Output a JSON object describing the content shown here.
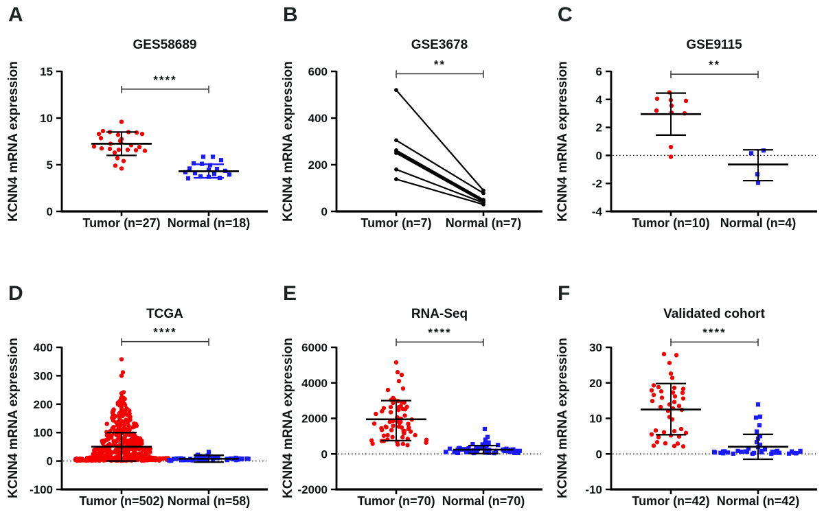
{
  "background": "#ffffff",
  "palette": {
    "tumor_red": "#f40000",
    "normal_blue": "#1b1aff",
    "axis_black": "#000000",
    "bracket_gray": "#3f3f3f"
  },
  "chart_data": [
    {
      "panel": "A",
      "type": "scatter",
      "title": "GES58689",
      "ylabel": "KCNN4 mRNA expression",
      "ylim": [
        0,
        15
      ],
      "yticks": [
        0,
        5,
        10,
        15
      ],
      "zero_line": false,
      "significance": "****",
      "bracket_y": 13.1,
      "legend": "none",
      "grid": "off",
      "groups": [
        {
          "name": "Tumor (n=27)",
          "marker": "circle",
          "color": "#f40000",
          "mean": 7.25,
          "upper": 8.5,
          "lower": 6.0,
          "points": [
            [
              0,
              9.6
            ],
            [
              -27,
              8.6
            ],
            [
              -17,
              8.5
            ],
            [
              10,
              8.5
            ],
            [
              22,
              8.45
            ],
            [
              -33,
              8.3
            ],
            [
              30,
              8.3
            ],
            [
              -5,
              8.2
            ],
            [
              -30,
              7.85
            ],
            [
              0,
              7.75
            ],
            [
              -2,
              7.55
            ],
            [
              -1,
              7.35
            ],
            [
              -16,
              7.25
            ],
            [
              14,
              7.1
            ],
            [
              -40,
              6.95
            ],
            [
              26,
              6.9
            ],
            [
              -29,
              6.75
            ],
            [
              -17,
              6.7
            ],
            [
              -4,
              6.6
            ],
            [
              9,
              6.6
            ],
            [
              21,
              6.55
            ],
            [
              34,
              6.5
            ],
            [
              -10,
              6.3
            ],
            [
              -6,
              5.7
            ],
            [
              3,
              5.4
            ],
            [
              -9,
              4.9
            ],
            [
              0,
              4.6
            ]
          ]
        },
        {
          "name": "Normal (n=18)",
          "marker": "square",
          "color": "#1b1aff",
          "error_color": "#1b1aff",
          "mean": 4.3,
          "upper": 5.05,
          "lower": 3.6,
          "points": [
            [
              -8,
              5.85
            ],
            [
              6,
              5.85
            ],
            [
              18,
              5.5
            ],
            [
              -22,
              5.15
            ],
            [
              -10,
              5.1
            ],
            [
              2,
              4.95
            ],
            [
              -28,
              4.6
            ],
            [
              12,
              4.55
            ],
            [
              0,
              4.45
            ],
            [
              24,
              4.35
            ],
            [
              -34,
              4.2
            ],
            [
              -20,
              4.1
            ],
            [
              8,
              4.0
            ],
            [
              30,
              3.95
            ],
            [
              -12,
              3.75
            ],
            [
              0,
              3.7
            ],
            [
              16,
              3.6
            ],
            [
              -30,
              3.55
            ]
          ]
        }
      ]
    },
    {
      "panel": "B",
      "type": "paired",
      "title": "GSE3678",
      "ylabel": "KCNN4 mRNA expression",
      "ylim": [
        0,
        600
      ],
      "yticks": [
        0,
        200,
        400,
        600
      ],
      "zero_line": false,
      "significance": "**",
      "bracket_y": 590,
      "legend": "none",
      "grid": "off",
      "line_color": "#000000",
      "groups": [
        {
          "name": "Tumor (n=7)",
          "marker": "circle",
          "color": "#000000"
        },
        {
          "name": "Normal (n=7)",
          "marker": "circle",
          "color": "#000000"
        }
      ],
      "pairs": [
        [
          520,
          90
        ],
        [
          305,
          78
        ],
        [
          262,
          50
        ],
        [
          256,
          45
        ],
        [
          250,
          41
        ],
        [
          180,
          37
        ],
        [
          138,
          30
        ]
      ]
    },
    {
      "panel": "C",
      "type": "scatter",
      "title": "GSE9115",
      "ylabel": "KCNN4 mRNA expression",
      "ylim": [
        -4,
        6
      ],
      "yticks": [
        -4,
        -2,
        0,
        2,
        4,
        6
      ],
      "zero_line": true,
      "significance": "**",
      "bracket_y": 5.8,
      "legend": "none",
      "grid": "off",
      "groups": [
        {
          "name": "Tumor (n=10)",
          "marker": "circle",
          "color": "#f40000",
          "mean": 2.95,
          "upper": 4.45,
          "lower": 1.45,
          "points": [
            [
              -2,
              4.5
            ],
            [
              -20,
              4.05
            ],
            [
              0,
              3.95
            ],
            [
              22,
              3.9
            ],
            [
              1,
              3.55
            ],
            [
              -21,
              3.2
            ],
            [
              1,
              3.05
            ],
            [
              20,
              3.0
            ],
            [
              0,
              0.6
            ],
            [
              0,
              -0.1
            ]
          ]
        },
        {
          "name": "Normal (n=4)",
          "marker": "square",
          "color": "#1b1aff",
          "mean": -0.65,
          "upper": 0.4,
          "lower": -1.8,
          "points": [
            [
              -10,
              0.15
            ],
            [
              8,
              0.35
            ],
            [
              -1,
              -1.35
            ],
            [
              0,
              -1.95
            ]
          ]
        }
      ]
    },
    {
      "panel": "D",
      "type": "scatter",
      "title": "TCGA",
      "ylabel": "KCNN4 mRNA expression",
      "ylim": [
        -100,
        400
      ],
      "yticks": [
        -100,
        0,
        100,
        200,
        300,
        400
      ],
      "zero_line": true,
      "significance": "****",
      "bracket_y": 420,
      "legend": "none",
      "grid": "off",
      "groups": [
        {
          "name": "Tumor (n=502)",
          "marker": "circle",
          "color": "#f40000",
          "mean": 50,
          "upper": 100,
          "lower": 0,
          "bands": [
            [
              150,
              1,
              12,
              68
            ],
            [
              120,
              12,
              45,
              42
            ],
            [
              90,
              45,
              85,
              30
            ],
            [
              60,
              85,
              135,
              22
            ],
            [
              40,
              135,
              185,
              14
            ],
            [
              20,
              185,
              232,
              8
            ]
          ],
          "outliers": [
            [
              0,
              238
            ],
            [
              3,
              242
            ],
            [
              0,
              300
            ],
            [
              2,
              312
            ],
            [
              0,
              358
            ]
          ]
        },
        {
          "name": "Normal (n=58)",
          "marker": "square",
          "color": "#1b1aff",
          "mean": 8,
          "upper": 20,
          "lower": -4,
          "bands": [
            [
              46,
              1,
              12,
              58
            ],
            [
              10,
              12,
              22,
              25
            ]
          ],
          "outliers": [
            [
              0,
              32
            ]
          ]
        }
      ]
    },
    {
      "panel": "E",
      "type": "scatter",
      "title": "RNA-Seq",
      "ylabel": "KCNN4 mRNA expression",
      "ylim": [
        -2000,
        6000
      ],
      "yticks": [
        -2000,
        0,
        2000,
        4000,
        6000
      ],
      "zero_line": true,
      "significance": "****",
      "bracket_y": 6300,
      "legend": "none",
      "grid": "off",
      "groups": [
        {
          "name": "Tumor (n=70)",
          "marker": "circle",
          "color": "#f40000",
          "mean": 1950,
          "upper": 3000,
          "lower": 750,
          "bands": [
            [
              10,
              480,
              800,
              52
            ],
            [
              16,
              800,
              1450,
              48
            ],
            [
              16,
              1450,
              2100,
              40
            ],
            [
              12,
              2100,
              2700,
              36
            ],
            [
              7,
              2700,
              3250,
              24
            ]
          ],
          "outliers": [
            [
              -12,
              3600
            ],
            [
              10,
              3680
            ],
            [
              4,
              4100
            ],
            [
              8,
              4450
            ],
            [
              2,
              4600
            ],
            [
              0,
              5150
            ]
          ]
        },
        {
          "name": "Normal (n=70)",
          "marker": "square",
          "color": "#1b1aff",
          "mean": 240,
          "upper": 470,
          "lower": 20,
          "bands": [
            [
              50,
              30,
              330,
              56
            ],
            [
              12,
              330,
              640,
              28
            ]
          ],
          "outliers": [
            [
              3,
              800
            ],
            [
              6,
              950
            ],
            [
              2,
              1400
            ]
          ]
        }
      ]
    },
    {
      "panel": "F",
      "type": "scatter",
      "title": "Validated cohort",
      "ylabel": "KCNN4 mRNA expression",
      "ylim": [
        -10,
        30
      ],
      "yticks": [
        -10,
        0,
        10,
        20,
        30
      ],
      "zero_line": true,
      "significance": "****",
      "bracket_y": 31.5,
      "legend": "none",
      "grid": "off",
      "groups": [
        {
          "name": "Tumor (n=42)",
          "marker": "circle",
          "color": "#f40000",
          "mean": 12.5,
          "upper": 19.8,
          "lower": 5.4,
          "points": [
            [
              -10,
              28.1
            ],
            [
              8,
              27.8
            ],
            [
              -2,
              25.6
            ],
            [
              0,
              22.6
            ],
            [
              2,
              21.4
            ],
            [
              -25,
              19.3
            ],
            [
              -18,
              18.8
            ],
            [
              5,
              18.6
            ],
            [
              18,
              18.3
            ],
            [
              -28,
              17.9
            ],
            [
              -14,
              17.6
            ],
            [
              3,
              17.3
            ],
            [
              17,
              17.2
            ],
            [
              -25,
              16.6
            ],
            [
              6,
              16.2
            ],
            [
              -13,
              15.8
            ],
            [
              18,
              15.6
            ],
            [
              -27,
              14.9
            ],
            [
              5,
              14.6
            ],
            [
              -2,
              13.9
            ],
            [
              12,
              13.5
            ],
            [
              -15,
              13.2
            ],
            [
              3,
              12.8
            ],
            [
              16,
              12.4
            ],
            [
              -4,
              12.1
            ],
            [
              -2,
              10.4
            ],
            [
              2,
              9.7
            ],
            [
              15,
              7.0
            ],
            [
              -22,
              6.6
            ],
            [
              5,
              6.4
            ],
            [
              -10,
              6.1
            ],
            [
              22,
              5.9
            ],
            [
              -28,
              5.5
            ],
            [
              0,
              5.2
            ],
            [
              12,
              4.9
            ],
            [
              -18,
              4.7
            ],
            [
              -20,
              3.3
            ],
            [
              -8,
              3.0
            ],
            [
              10,
              2.9
            ],
            [
              -25,
              2.3
            ],
            [
              5,
              2.2
            ],
            [
              18,
              2.1
            ]
          ]
        },
        {
          "name": "Normal (n=42)",
          "marker": "square",
          "color": "#1b1aff",
          "mean": 2.0,
          "upper": 5.5,
          "lower": -1.5,
          "points": [
            [
              0,
              13.9
            ],
            [
              3,
              10.5
            ],
            [
              -3,
              10.2
            ],
            [
              2,
              8.1
            ],
            [
              -2,
              6.3
            ],
            [
              3,
              5.0
            ],
            [
              0,
              4.3
            ],
            [
              -2,
              3.3
            ],
            [
              3,
              2.6
            ],
            [
              0,
              1.9
            ],
            [
              -14,
              1.5
            ],
            [
              10,
              1.3
            ]
          ],
          "bands": [
            [
              30,
              0.05,
              0.9,
              64
            ]
          ]
        }
      ]
    }
  ]
}
